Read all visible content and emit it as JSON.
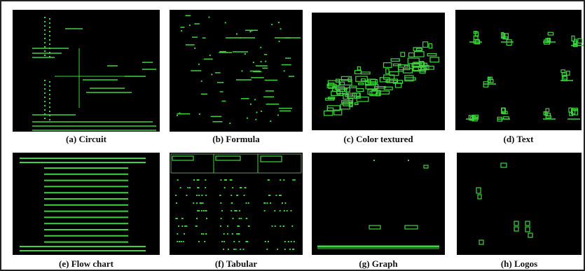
{
  "figure": {
    "panels": [
      {
        "caption": "(a) Circuit"
      },
      {
        "caption": "(b) Formula"
      },
      {
        "caption": "(c) Color textured"
      },
      {
        "caption": "(d) Text"
      },
      {
        "caption": "(e) Flow chart"
      },
      {
        "caption": "(f) Tabular"
      },
      {
        "caption": "(g) Graph"
      },
      {
        "caption": "(h) Logos"
      }
    ]
  }
}
